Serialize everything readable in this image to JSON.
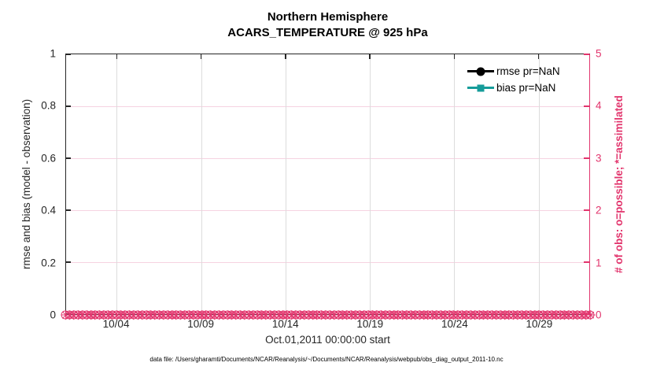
{
  "title": {
    "line1": "Northern Hemisphere",
    "line2": "ACARS_TEMPERATURE @ 925 hPa"
  },
  "legend": {
    "items": [
      {
        "label": "rmse pr=NaN",
        "color": "#000000",
        "marker": "circle"
      },
      {
        "label": "bias pr=NaN",
        "color": "#169c9a",
        "marker": "square"
      }
    ]
  },
  "axes": {
    "left": {
      "label": "rmse and bias (model - observation)",
      "ticks": [
        "0",
        "0.2",
        "0.4",
        "0.6",
        "0.8",
        "1"
      ],
      "color": "#262626"
    },
    "right": {
      "label": "# of obs: o=possible; *=assimilated",
      "ticks": [
        "0",
        "1",
        "2",
        "3",
        "4",
        "5"
      ],
      "color": "#e2356d"
    },
    "x": {
      "label": "Oct.01,2011 00:00:00 start",
      "ticks": [
        "10/04",
        "10/09",
        "10/14",
        "10/19",
        "10/24",
        "10/29"
      ],
      "tick_positions_pct": [
        9.68,
        25.81,
        41.94,
        58.06,
        74.19,
        90.32
      ]
    }
  },
  "caption": "data file: /Users/gharamti/Documents/NCAR/Reanalysis/~/Documents/NCAR/Reanalysis/webpub/obs_diag_output_2011-10.nc",
  "colors": {
    "accent_pink": "#e2356d",
    "bias_teal": "#169c9a",
    "grid_pink": "#f6d3e1",
    "grid_gray": "#dcdcdc",
    "axis_dark": "#262626"
  },
  "chart_data": {
    "type": "line",
    "title": "Northern Hemisphere",
    "subtitle": "ACARS_TEMPERATURE @ 925 hPa",
    "xlabel": "Oct.01,2011 00:00:00 start",
    "ylabel_left": "rmse and bias (model - observation)",
    "ylabel_right": "# of obs: o=possible; *=assimilated",
    "ylim_left": [
      0,
      1
    ],
    "ylim_right": [
      0,
      5
    ],
    "x_tick_labels": [
      "10/04",
      "10/09",
      "10/14",
      "10/19",
      "10/24",
      "10/29"
    ],
    "x_tick_positions_pct": [
      9.68,
      25.81,
      41.94,
      58.06,
      74.19,
      90.32
    ],
    "y_ticks_left": [
      0,
      0.2,
      0.4,
      0.6,
      0.8,
      1
    ],
    "y_ticks_right": [
      0,
      1,
      2,
      3,
      4,
      5
    ],
    "grid": true,
    "legend_position": "upper right",
    "n_obs_times": 124,
    "series": [
      {
        "name": "rmse pr=NaN",
        "marker": "circle",
        "color": "#000000",
        "values": "NaN (no curve plotted)"
      },
      {
        "name": "bias pr=NaN",
        "marker": "square",
        "color": "#169c9a",
        "values": "NaN (no curve plotted)"
      },
      {
        "name": "# obs possible (o markers)",
        "marker": "o",
        "color": "#e2356d",
        "constant_value": 0,
        "n_points": 124
      },
      {
        "name": "# obs assimilated (* markers)",
        "marker": "*",
        "color": "#e2356d",
        "constant_value": 0,
        "n_points": 124
      }
    ]
  }
}
